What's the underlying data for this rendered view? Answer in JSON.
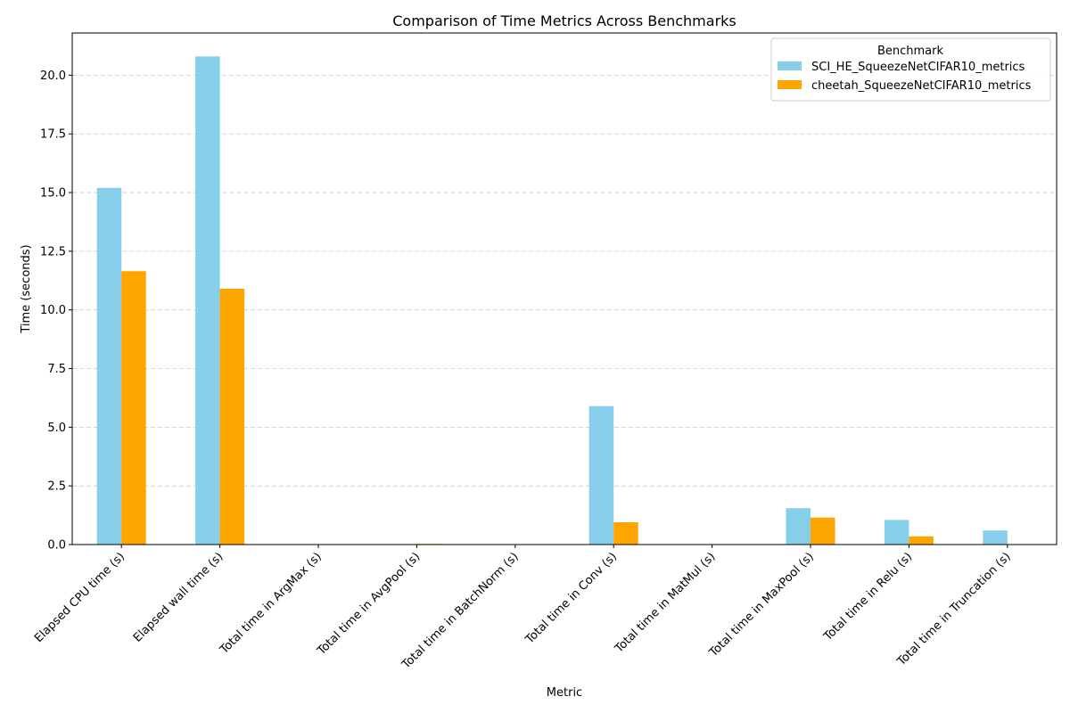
{
  "chart_data": {
    "type": "bar",
    "title": "Comparison of Time Metrics Across Benchmarks",
    "xlabel": "Metric",
    "ylabel": "Time (seconds)",
    "ylim": [
      0,
      21.8
    ],
    "yticks": [
      "0.0",
      "2.5",
      "5.0",
      "7.5",
      "10.0",
      "12.5",
      "15.0",
      "17.5",
      "20.0"
    ],
    "ytick_values": [
      0,
      2.5,
      5,
      7.5,
      10,
      12.5,
      15,
      17.5,
      20
    ],
    "grid": "y-dashed",
    "categories": [
      "Elapsed CPU time (s)",
      "Elapsed wall time (s)",
      "Total time in ArgMax (s)",
      "Total time in AvgPool (s)",
      "Total time in BatchNorm (s)",
      "Total time in Conv (s)",
      "Total time in MatMul (s)",
      "Total time in MaxPool (s)",
      "Total time in Relu (s)",
      "Total time in Truncation (s)"
    ],
    "series": [
      {
        "name": "SCI_HE_SqueezeNetCIFAR10_metrics",
        "color": "#87CEEB",
        "values": [
          15.2,
          20.8,
          0.0,
          0.0,
          0.0,
          5.9,
          0.0,
          1.55,
          1.05,
          0.6
        ]
      },
      {
        "name": "cheetah_SqueezeNetCIFAR10_metrics",
        "color": "#FFA500",
        "values": [
          11.65,
          10.9,
          0.0,
          0.03,
          0.0,
          0.95,
          0.0,
          1.15,
          0.35,
          0.0
        ]
      }
    ],
    "legend": {
      "title": "Benchmark",
      "placement": "top-right"
    }
  }
}
